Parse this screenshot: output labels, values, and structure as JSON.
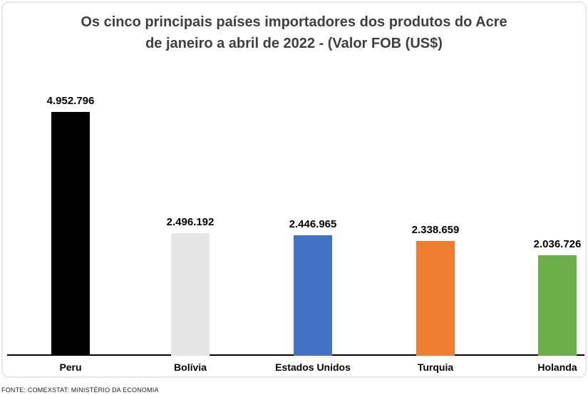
{
  "page": {
    "footer": "FONTE: COMEXSTAT: MINISTÉRIO DA ECONOMIA"
  },
  "chart_data": {
    "type": "bar",
    "title": "Os cinco principais países importadores dos produtos do Acre de janeiro a abril de 2022 - (Valor FOB (US$)",
    "title_line1": "Os cinco principais países importadores dos produtos do Acre",
    "title_line2": "de janeiro a abril de 2022 - (Valor FOB (US$)",
    "categories": [
      "Peru",
      "Bolívia",
      "Estados Unidos",
      "Turquia",
      "Holanda"
    ],
    "values": [
      4952796,
      2496192,
      2446965,
      2338659,
      2036726
    ],
    "value_labels": [
      "4.952.796",
      "2.496.192",
      "2.446.965",
      "2.338.659",
      "2.036.726"
    ],
    "series": [
      {
        "name": "Valor FOB (US$)",
        "values": [
          4952796,
          2496192,
          2446965,
          2338659,
          2036726
        ]
      }
    ],
    "bar_colors": [
      "#000000",
      "#E7E6E6",
      "#4472C4",
      "#ED7D31",
      "#6BAE4A"
    ],
    "xlabel": "",
    "ylabel": "",
    "ylim": [
      0,
      4952796
    ],
    "grid": false,
    "legend": false,
    "axis_visible": "x-only",
    "title_color": "#3F3F3F",
    "label_color": "#000000",
    "axis_line_color": "#000000"
  }
}
